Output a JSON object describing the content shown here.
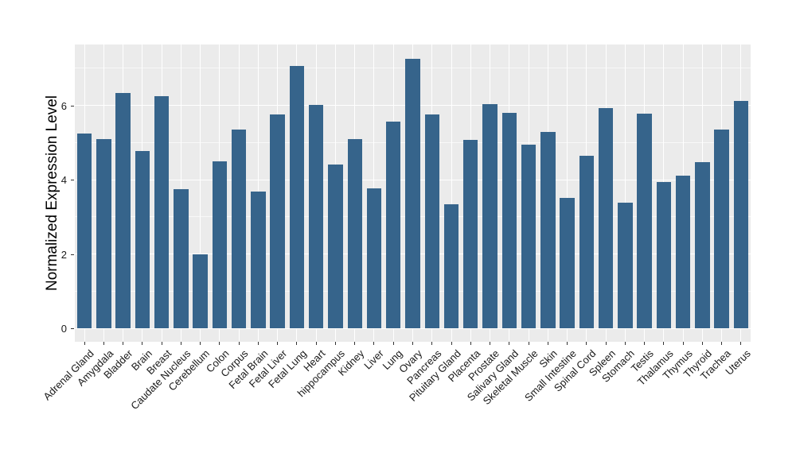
{
  "chart_data": {
    "type": "bar",
    "title": "",
    "xlabel": "",
    "ylabel": "Normalized Expression Level",
    "categories": [
      "Adrenal Gland",
      "Amygdala",
      "Bladder",
      "Brain",
      "Breast",
      "Caudate Nucleus",
      "Cerebellum",
      "Colon",
      "Corpus",
      "Fetal Brain",
      "Fetal Liver",
      "Fetal Lung",
      "Heart",
      "hippocampus",
      "Kidney",
      "Liver",
      "Lung",
      "Ovary",
      "Pancreas",
      "Pituitary Gland",
      "Placenta",
      "Prostate",
      "Salivary Gland",
      "Skeletal Muscle",
      "Skin",
      "Small Intestine",
      "Spinal Cord",
      "Spleen",
      "Stomach",
      "Testis",
      "Thalamus",
      "Thymus",
      "Thyroid",
      "Trachea",
      "Uterus"
    ],
    "values": [
      5.25,
      5.1,
      6.34,
      4.77,
      6.25,
      3.75,
      2.0,
      4.49,
      5.36,
      3.69,
      5.76,
      7.06,
      6.01,
      4.41,
      5.1,
      3.76,
      5.57,
      7.26,
      5.76,
      3.35,
      5.08,
      6.03,
      5.81,
      4.95,
      5.29,
      3.51,
      4.65,
      5.93,
      3.39,
      5.77,
      3.95,
      4.12,
      4.48,
      5.36,
      6.13
    ],
    "ytick_labels": [
      "0",
      "2",
      "4",
      "6"
    ],
    "yticks": [
      0,
      2,
      4,
      6
    ],
    "yminor_ticks": [
      1,
      3,
      5,
      7
    ],
    "ylim": [
      -0.36,
      7.64
    ],
    "grid": "on",
    "legend": "none",
    "colors": {
      "bar": "#36648B",
      "panel_background": "#EBEBEB",
      "grid_major": "#FFFFFF",
      "grid_minor": "#FFFFFF",
      "axis_text": "#1A1A1A",
      "axis_title": "#000000",
      "tick_mark": "#333333",
      "figure_background": "#FFFFFF"
    }
  }
}
